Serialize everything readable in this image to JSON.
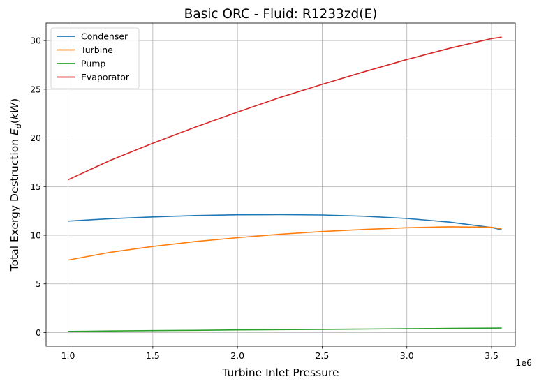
{
  "chart_data": {
    "type": "line",
    "title": "Basic ORC - Fluid: R1233zd(E)",
    "xlabel": "Turbine Inlet Pressure",
    "ylabel_prefix": "Total Exergy Destruction ",
    "ylabel_math": "E",
    "ylabel_sub": "d",
    "ylabel_unit_open": "(",
    "ylabel_unit": "kW",
    "ylabel_unit_close": ")",
    "x_offset_label": "1e6",
    "xlim": [
      0.87,
      3.64
    ],
    "ylim": [
      -1.4,
      31.8
    ],
    "x_ticks": [
      1.0,
      1.5,
      2.0,
      2.5,
      3.0,
      3.5
    ],
    "x_tick_labels": [
      "1.0",
      "1.5",
      "2.0",
      "2.5",
      "3.0",
      "3.5"
    ],
    "y_ticks": [
      0,
      5,
      10,
      15,
      20,
      25,
      30
    ],
    "y_tick_labels": [
      "0",
      "5",
      "10",
      "15",
      "20",
      "25",
      "30"
    ],
    "grid": true,
    "legend_position": "top-left",
    "x": [
      1.0,
      1.25,
      1.5,
      1.75,
      2.0,
      2.25,
      2.5,
      2.75,
      3.0,
      3.25,
      3.5,
      3.56
    ],
    "series": [
      {
        "name": "Condenser",
        "color": "#1f77b4",
        "values": [
          11.45,
          11.7,
          11.88,
          12.02,
          12.1,
          12.12,
          12.08,
          11.95,
          11.72,
          11.35,
          10.8,
          10.55
        ]
      },
      {
        "name": "Turbine",
        "color": "#ff7f0e",
        "values": [
          7.45,
          8.25,
          8.85,
          9.35,
          9.75,
          10.1,
          10.38,
          10.6,
          10.77,
          10.87,
          10.82,
          10.65
        ]
      },
      {
        "name": "Pump",
        "color": "#2ca02c",
        "values": [
          0.12,
          0.16,
          0.2,
          0.23,
          0.27,
          0.3,
          0.33,
          0.36,
          0.39,
          0.42,
          0.45,
          0.46
        ]
      },
      {
        "name": "Evaporator",
        "color": "#d62728",
        "values": [
          15.7,
          17.7,
          19.45,
          21.1,
          22.65,
          24.15,
          25.5,
          26.8,
          28.05,
          29.2,
          30.2,
          30.35
        ]
      }
    ]
  }
}
